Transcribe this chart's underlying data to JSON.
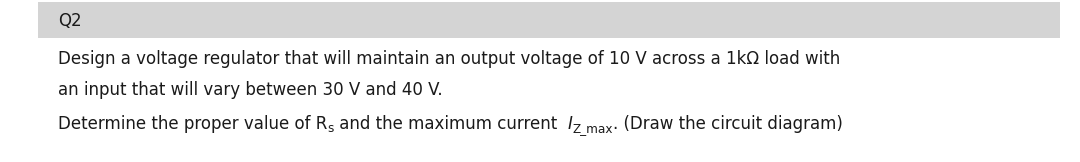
{
  "content_background": "#ffffff",
  "header_background": "#d4d4d4",
  "header_text": "Q2",
  "header_fontsize": 12,
  "line1": "Design a voltage regulator that will maintain an output voltage of 10 V across a 1kΩ load with",
  "line2": "an input that will vary between 30 V and 40 V.",
  "line3_part1": "Determine the proper value of R",
  "line3_sub_s": "s",
  "line3_part2": " and the maximum current  ",
  "line3_italic_I": "I",
  "line3_sub2": "Z_max",
  "line3_part3": ". (Draw the circuit diagram)",
  "body_fontsize": 12,
  "text_color": "#1a1a1a",
  "fig_width": 10.8,
  "fig_height": 1.62,
  "dpi": 100
}
